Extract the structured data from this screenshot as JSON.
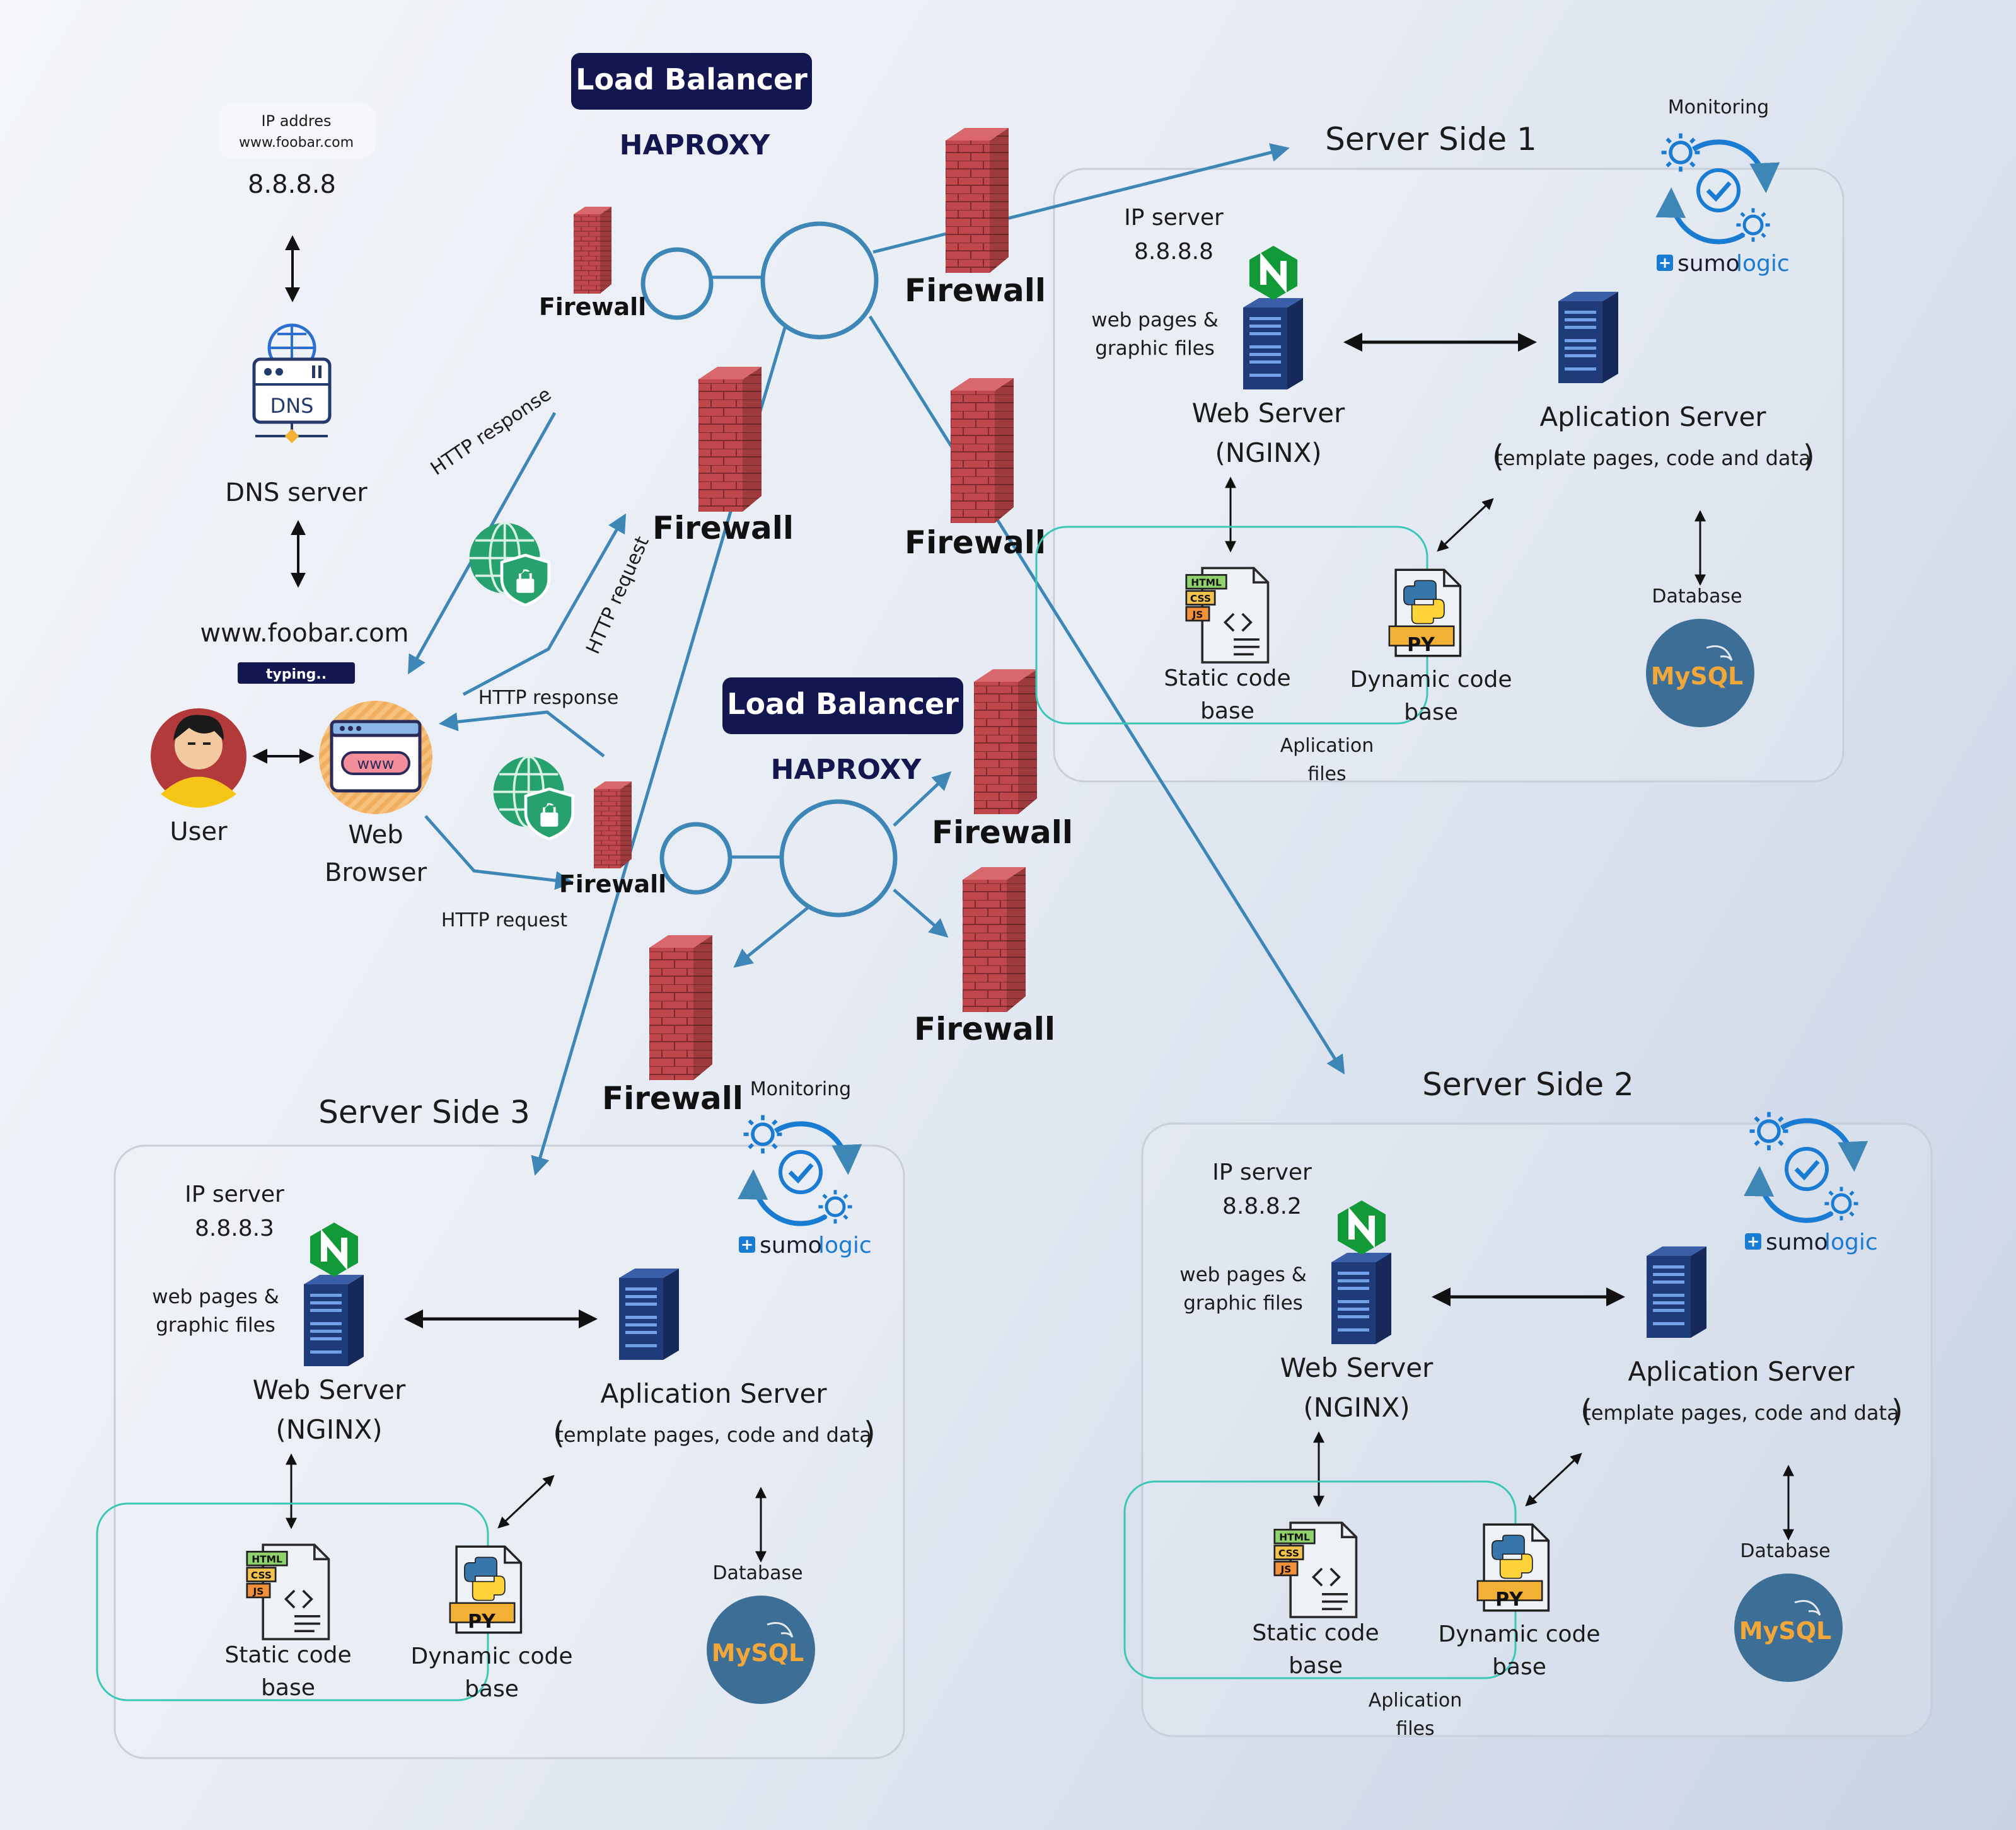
{
  "colors": {
    "line": "#3d86b6",
    "brick": "#c0474c",
    "brick_dark": "#8e2f33",
    "navy": "#13164f",
    "box_border": "#c9cfd9",
    "teal": "#3cc6b6",
    "ssl_green": "#27a26f",
    "nginx_green": "#129a38",
    "mysql_blue": "#3d6e96",
    "sumo_blue": "#1a7bd3",
    "server_blue": "#1f3b7a"
  },
  "client": {
    "ip_label": "IP addres",
    "ip_domain": "www.foobar.com",
    "ip_value": "8.8.8.8",
    "dns_icon_text": "DNS",
    "dns_label": "DNS server",
    "domain": "www.foobar.com",
    "typing_badge": "typing..",
    "user_label": "User",
    "browser_icon_text": "www",
    "browser_label_1": "Web",
    "browser_label_2": "Browser",
    "http_response_top": "HTTP response",
    "http_request_top": "HTTP request",
    "http_response_mid": "HTTP response",
    "http_request_bottom": "HTTP request",
    "ssl_text": "SSL"
  },
  "load_balancers": [
    {
      "badge": "Load Balancer",
      "software": "HAPROXY"
    },
    {
      "badge": "Load Balancer",
      "software": "HAPROXY"
    }
  ],
  "firewall_label": "Firewall",
  "server_sides": [
    {
      "title": "Server Side 1",
      "monitoring": "Monitoring",
      "ip_label": "IP server",
      "ip_value": "8.8.8.8",
      "web_files": [
        "web pages &",
        "graphic files"
      ],
      "web_server": [
        "Web Server",
        "(NGINX)"
      ],
      "app_server": "Aplication Server",
      "app_server_sub": "template pages, code and data",
      "static_code": [
        "Static code",
        "base"
      ],
      "dynamic_code": [
        "Dynamic code",
        "base"
      ],
      "app_files": [
        "Aplication",
        "files"
      ],
      "database": "Database",
      "mysql": "MySQL",
      "sumo_a": "sumo",
      "sumo_b": "logic",
      "py": "PY"
    },
    {
      "title": "Server Side 2",
      "monitoring": "",
      "ip_label": "IP server",
      "ip_value": "8.8.8.2",
      "web_files": [
        "web pages &",
        "graphic files"
      ],
      "web_server": [
        "Web Server",
        "(NGINX)"
      ],
      "app_server": "Aplication Server",
      "app_server_sub": "template pages, code and data",
      "static_code": [
        "Static code",
        "base"
      ],
      "dynamic_code": [
        "Dynamic code",
        "base"
      ],
      "app_files": [
        "Aplication",
        "files"
      ],
      "database": "Database",
      "mysql": "MySQL",
      "sumo_a": "sumo",
      "sumo_b": "logic",
      "py": "PY"
    },
    {
      "title": "Server Side 3",
      "monitoring": "Monitoring",
      "ip_label": "IP server",
      "ip_value": "8.8.8.3",
      "web_files": [
        "web pages &",
        "graphic files"
      ],
      "web_server": [
        "Web Server",
        "(NGINX)"
      ],
      "app_server": "Aplication Server",
      "app_server_sub": "template pages, code and data",
      "static_code": [
        "Static code",
        "base"
      ],
      "dynamic_code": [
        "Dynamic code",
        "base"
      ],
      "app_files": [
        "",
        ""
      ],
      "database": "Database",
      "mysql": "MySQL",
      "sumo_a": "sumo",
      "sumo_b": "logic",
      "py": "PY"
    }
  ]
}
